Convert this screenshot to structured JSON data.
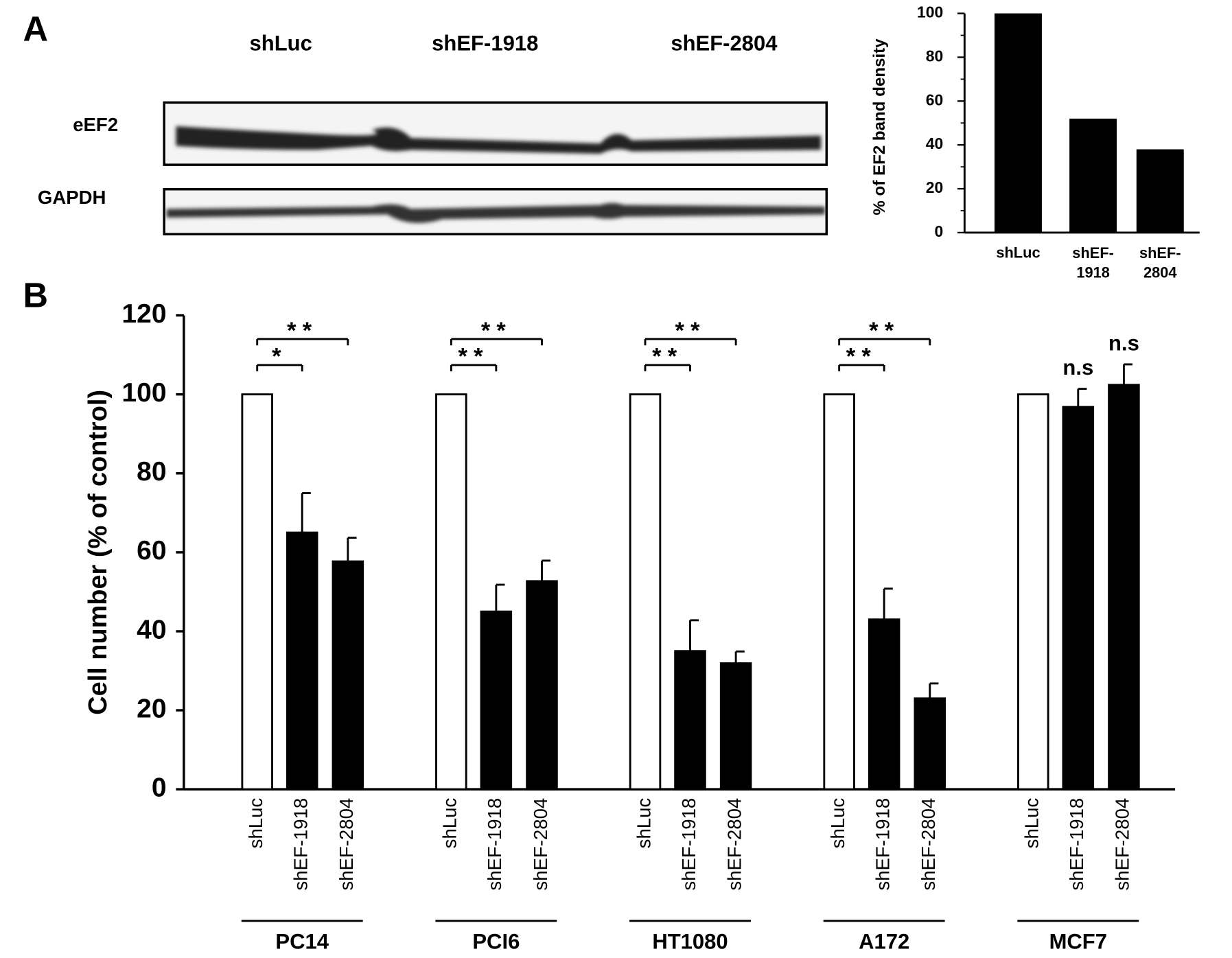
{
  "panel_labels": [
    "A",
    "B"
  ],
  "blot": {
    "lanes": [
      "shLuc",
      "shEF-1918",
      "shEF-2804"
    ],
    "rows": [
      "eEF2",
      "GAPDH"
    ]
  },
  "chart_data": [
    {
      "type": "bar",
      "ylabel": "% of EF2 band density",
      "categories": [
        "shLuc",
        "shEF-\n1918",
        "shEF-\n2804"
      ],
      "values": [
        100,
        52,
        38
      ],
      "color": "#000000",
      "ylim": [
        0,
        100
      ],
      "yticks": [
        0,
        20,
        40,
        60,
        80,
        100
      ]
    },
    {
      "type": "grouped_bar",
      "ylabel": "Cell number (% of control)",
      "categories": [
        "PC14",
        "PCI6",
        "HT1080",
        "A172",
        "MCF7"
      ],
      "series": [
        {
          "name": "shLuc",
          "color": "#ffffff",
          "values": [
            100,
            100,
            100,
            100,
            100
          ]
        },
        {
          "name": "shEF-1918",
          "color": "#000000",
          "values": [
            65,
            45,
            35,
            43,
            96.8
          ],
          "errors": [
            10,
            6.8,
            7.8,
            7.8,
            4.6
          ],
          "significance": [
            "*",
            "**",
            "**",
            "**",
            "n.s"
          ]
        },
        {
          "name": "shEF-2804",
          "color": "#000000",
          "values": [
            57.7,
            52.7,
            31.9,
            23,
            102.4
          ],
          "errors": [
            6,
            5.2,
            3,
            3.8,
            5.2
          ],
          "significance": [
            "**",
            "**",
            "**",
            "**",
            "n.s"
          ]
        }
      ],
      "significance_brackets": [
        true,
        true,
        true,
        true,
        false
      ],
      "ylim": [
        0,
        120
      ],
      "yticks": [
        0,
        20,
        40,
        60,
        80,
        100,
        120
      ]
    }
  ]
}
